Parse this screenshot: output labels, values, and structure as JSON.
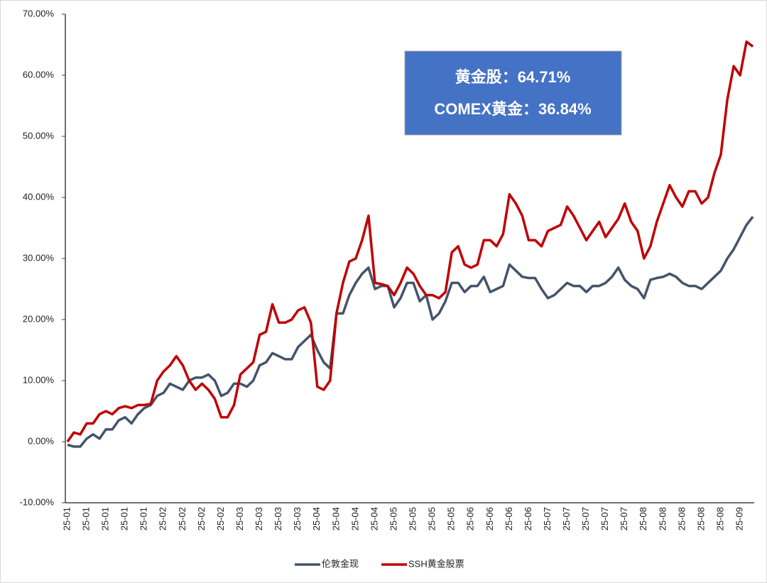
{
  "chart_data": {
    "type": "line",
    "categories": [
      "25-01",
      null,
      null,
      "25-01",
      null,
      null,
      "25-01",
      null,
      null,
      "25-01",
      null,
      null,
      "25-01",
      null,
      null,
      "25-02",
      null,
      null,
      "25-02",
      null,
      null,
      "25-02",
      null,
      null,
      "25-02",
      null,
      null,
      "25-03",
      null,
      null,
      "25-03",
      null,
      null,
      "25-03",
      null,
      null,
      "25-03",
      null,
      null,
      "25-04",
      null,
      null,
      "25-04",
      null,
      null,
      "25-04",
      null,
      null,
      "25-04",
      null,
      null,
      "25-05",
      null,
      null,
      "25-05",
      null,
      null,
      "25-05",
      null,
      null,
      "25-05",
      null,
      null,
      "25-06",
      null,
      null,
      "25-06",
      null,
      null,
      "25-06",
      null,
      null,
      "25-06",
      null,
      null,
      "25-07",
      null,
      null,
      "25-07",
      null,
      null,
      "25-07",
      null,
      null,
      "25-07",
      null,
      null,
      "25-07",
      null,
      null,
      "25-08",
      null,
      null,
      "25-08",
      null,
      null,
      "25-08",
      null,
      null,
      "25-08",
      null,
      null,
      "25-08",
      null,
      null,
      "25-09",
      null,
      null
    ],
    "series": [
      {
        "name": "伦敦金现",
        "color": "#44546a",
        "values": [
          -0.5,
          -0.8,
          -0.8,
          0.5,
          1.2,
          0.5,
          2,
          2,
          3.5,
          4,
          3,
          4.5,
          5.5,
          6,
          7.5,
          8,
          9.5,
          9,
          8.5,
          10,
          10.5,
          10.5,
          11,
          10,
          7.5,
          8,
          9.5,
          9.5,
          9,
          10,
          12.5,
          13,
          14.5,
          14,
          13.5,
          13.5,
          15.5,
          16.5,
          17.5,
          15,
          13,
          12,
          21,
          21,
          24,
          26,
          27.5,
          28.5,
          25,
          25.5,
          25.5,
          22,
          23.5,
          26,
          26,
          23,
          24,
          20,
          21,
          23,
          26,
          26,
          24.5,
          25.5,
          25.5,
          27,
          24.5,
          25,
          25.5,
          29,
          28,
          27,
          26.8,
          26.8,
          25,
          23.5,
          24,
          25,
          26,
          25.5,
          25.5,
          24.5,
          25.5,
          25.5,
          26,
          27,
          28.5,
          26.5,
          25.5,
          25,
          23.5,
          26.5,
          26.8,
          27,
          27.5,
          27,
          26,
          25.5,
          25.5,
          25,
          26,
          27,
          28,
          30,
          31.5,
          33.5,
          35.5,
          36.84
        ]
      },
      {
        "name": "SSH黄金股票",
        "color": "#c00000",
        "values": [
          0,
          1.5,
          1.2,
          3,
          3,
          4.5,
          5,
          4.5,
          5.5,
          5.8,
          5.5,
          6,
          6,
          6.2,
          10,
          11.5,
          12.5,
          14,
          12.5,
          10,
          8.5,
          9.5,
          8.5,
          7,
          4,
          4,
          6,
          11,
          12,
          13,
          17.5,
          18,
          22.5,
          19.5,
          19.5,
          20,
          21.5,
          22,
          19.5,
          9,
          8.5,
          10,
          21,
          26,
          29.5,
          30,
          33,
          37,
          26,
          25.8,
          25.5,
          24,
          26,
          28.5,
          27.5,
          25.5,
          24,
          24,
          23.5,
          24.5,
          31,
          32,
          29,
          28.5,
          29,
          33,
          33,
          32,
          34,
          40.5,
          39,
          37,
          33,
          33,
          32,
          34.5,
          35,
          35.5,
          38.5,
          37,
          35,
          33,
          34.5,
          36,
          33.5,
          35,
          36.5,
          39,
          36,
          34.5,
          30,
          32,
          36,
          39,
          42,
          40,
          38.5,
          41,
          41,
          39,
          40,
          44,
          47,
          56,
          61.5,
          60,
          65.5,
          64.71
        ]
      }
    ],
    "ylim": [
      -10,
      70
    ],
    "yticks": [
      {
        "value": -10,
        "label": "-10.00%"
      },
      {
        "value": 0,
        "label": "0.00%"
      },
      {
        "value": 10,
        "label": "10.00%"
      },
      {
        "value": 20,
        "label": "20.00%"
      },
      {
        "value": 30,
        "label": "30.00%"
      },
      {
        "value": 40,
        "label": "40.00%"
      },
      {
        "value": 50,
        "label": "50.00%"
      },
      {
        "value": 60,
        "label": "60.00%"
      },
      {
        "value": 70,
        "label": "70.00%"
      }
    ],
    "grid": false,
    "legend": "bottom",
    "annotations": [
      "黄金股：64.71%",
      "COMEX黄金：36.84%"
    ]
  }
}
